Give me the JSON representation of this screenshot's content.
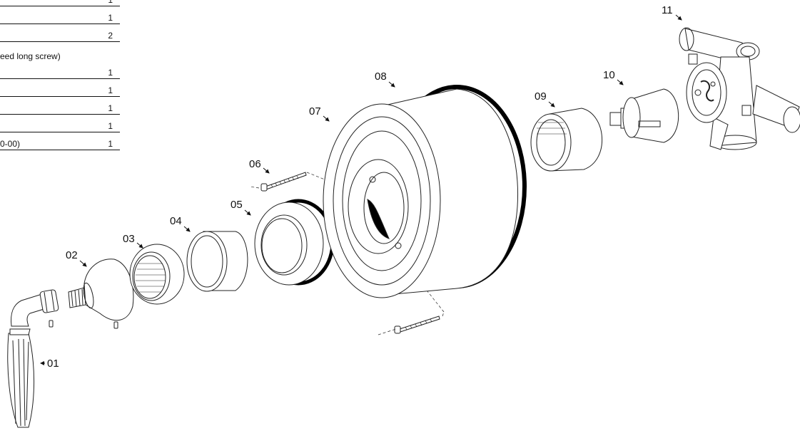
{
  "parts_table": {
    "rows": [
      {
        "description": "",
        "qty": "1"
      },
      {
        "description": "",
        "qty": "1"
      },
      {
        "description": "",
        "qty": "2"
      },
      {
        "description": "",
        "qty": "1"
      },
      {
        "description": "",
        "qty": "1"
      },
      {
        "description": "",
        "qty": "1"
      },
      {
        "description": "",
        "qty": "1"
      },
      {
        "description": "0-00)",
        "qty": "1"
      }
    ],
    "note": "eed long screw)"
  },
  "callouts": [
    "01",
    "02",
    "03",
    "04",
    "05",
    "06",
    "07",
    "08",
    "09",
    "10",
    "11"
  ]
}
